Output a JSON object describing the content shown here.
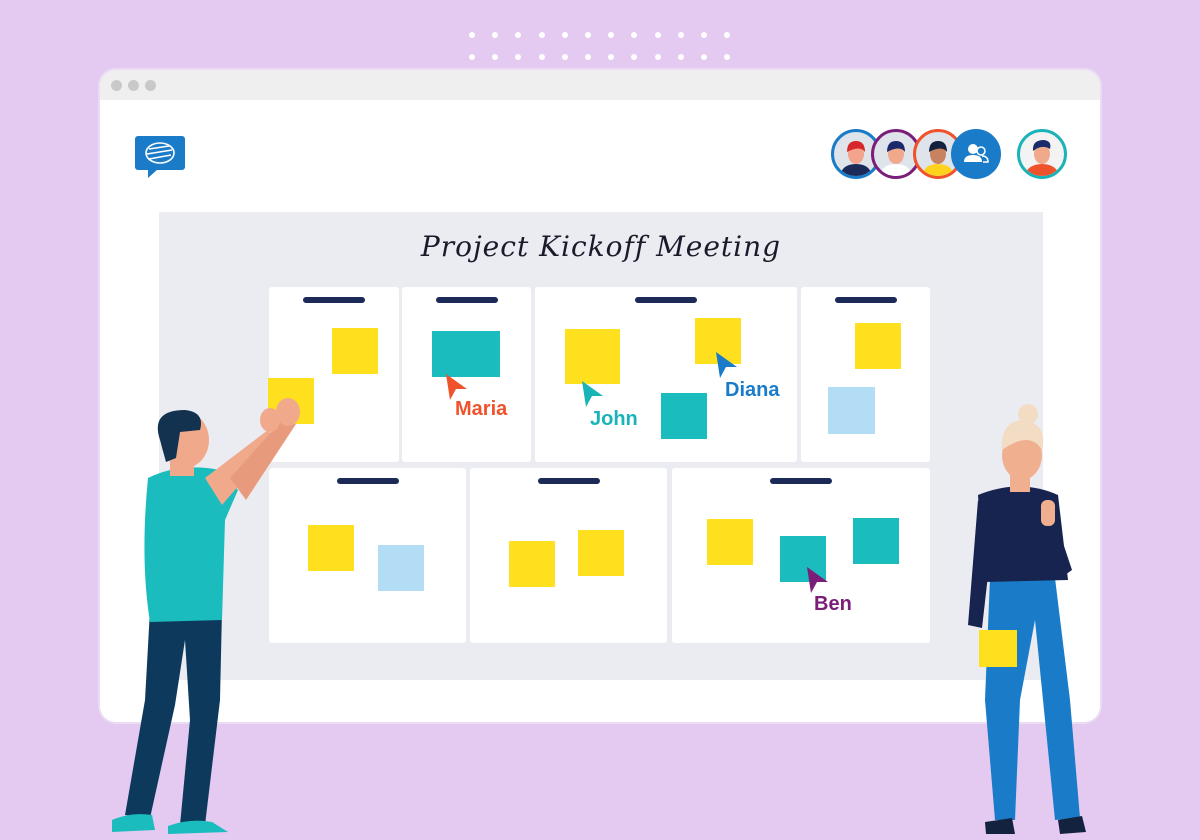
{
  "board": {
    "title": "Project Kickoff Meeting"
  },
  "cursors": [
    {
      "name": "Maria",
      "color": "#f0532c"
    },
    {
      "name": "John",
      "color": "#1ab3b8"
    },
    {
      "name": "Diana",
      "color": "#1a7cc9"
    },
    {
      "name": "Ben",
      "color": "#7b1e7a"
    }
  ],
  "participants": [
    {
      "icon": "avatar-woman-red-hair",
      "ring": "#1a7cc9"
    },
    {
      "icon": "avatar-man-navy-hair",
      "ring": "#7b1e7a"
    },
    {
      "icon": "avatar-woman-dark-hair",
      "ring": "#f0532c"
    },
    {
      "icon": "participants-group-icon",
      "ring": "#1a7cc9"
    }
  ],
  "current_user": {
    "icon": "avatar-man",
    "ring": "#1ab3b8"
  },
  "colors": {
    "background": "#e4c9f1",
    "sticky_yellow": "#ffe01e",
    "sticky_teal": "#1abcbe",
    "sticky_light_blue": "#b3dcf5",
    "brand_blue": "#1a7cc9",
    "navy": "#1b2a57"
  }
}
